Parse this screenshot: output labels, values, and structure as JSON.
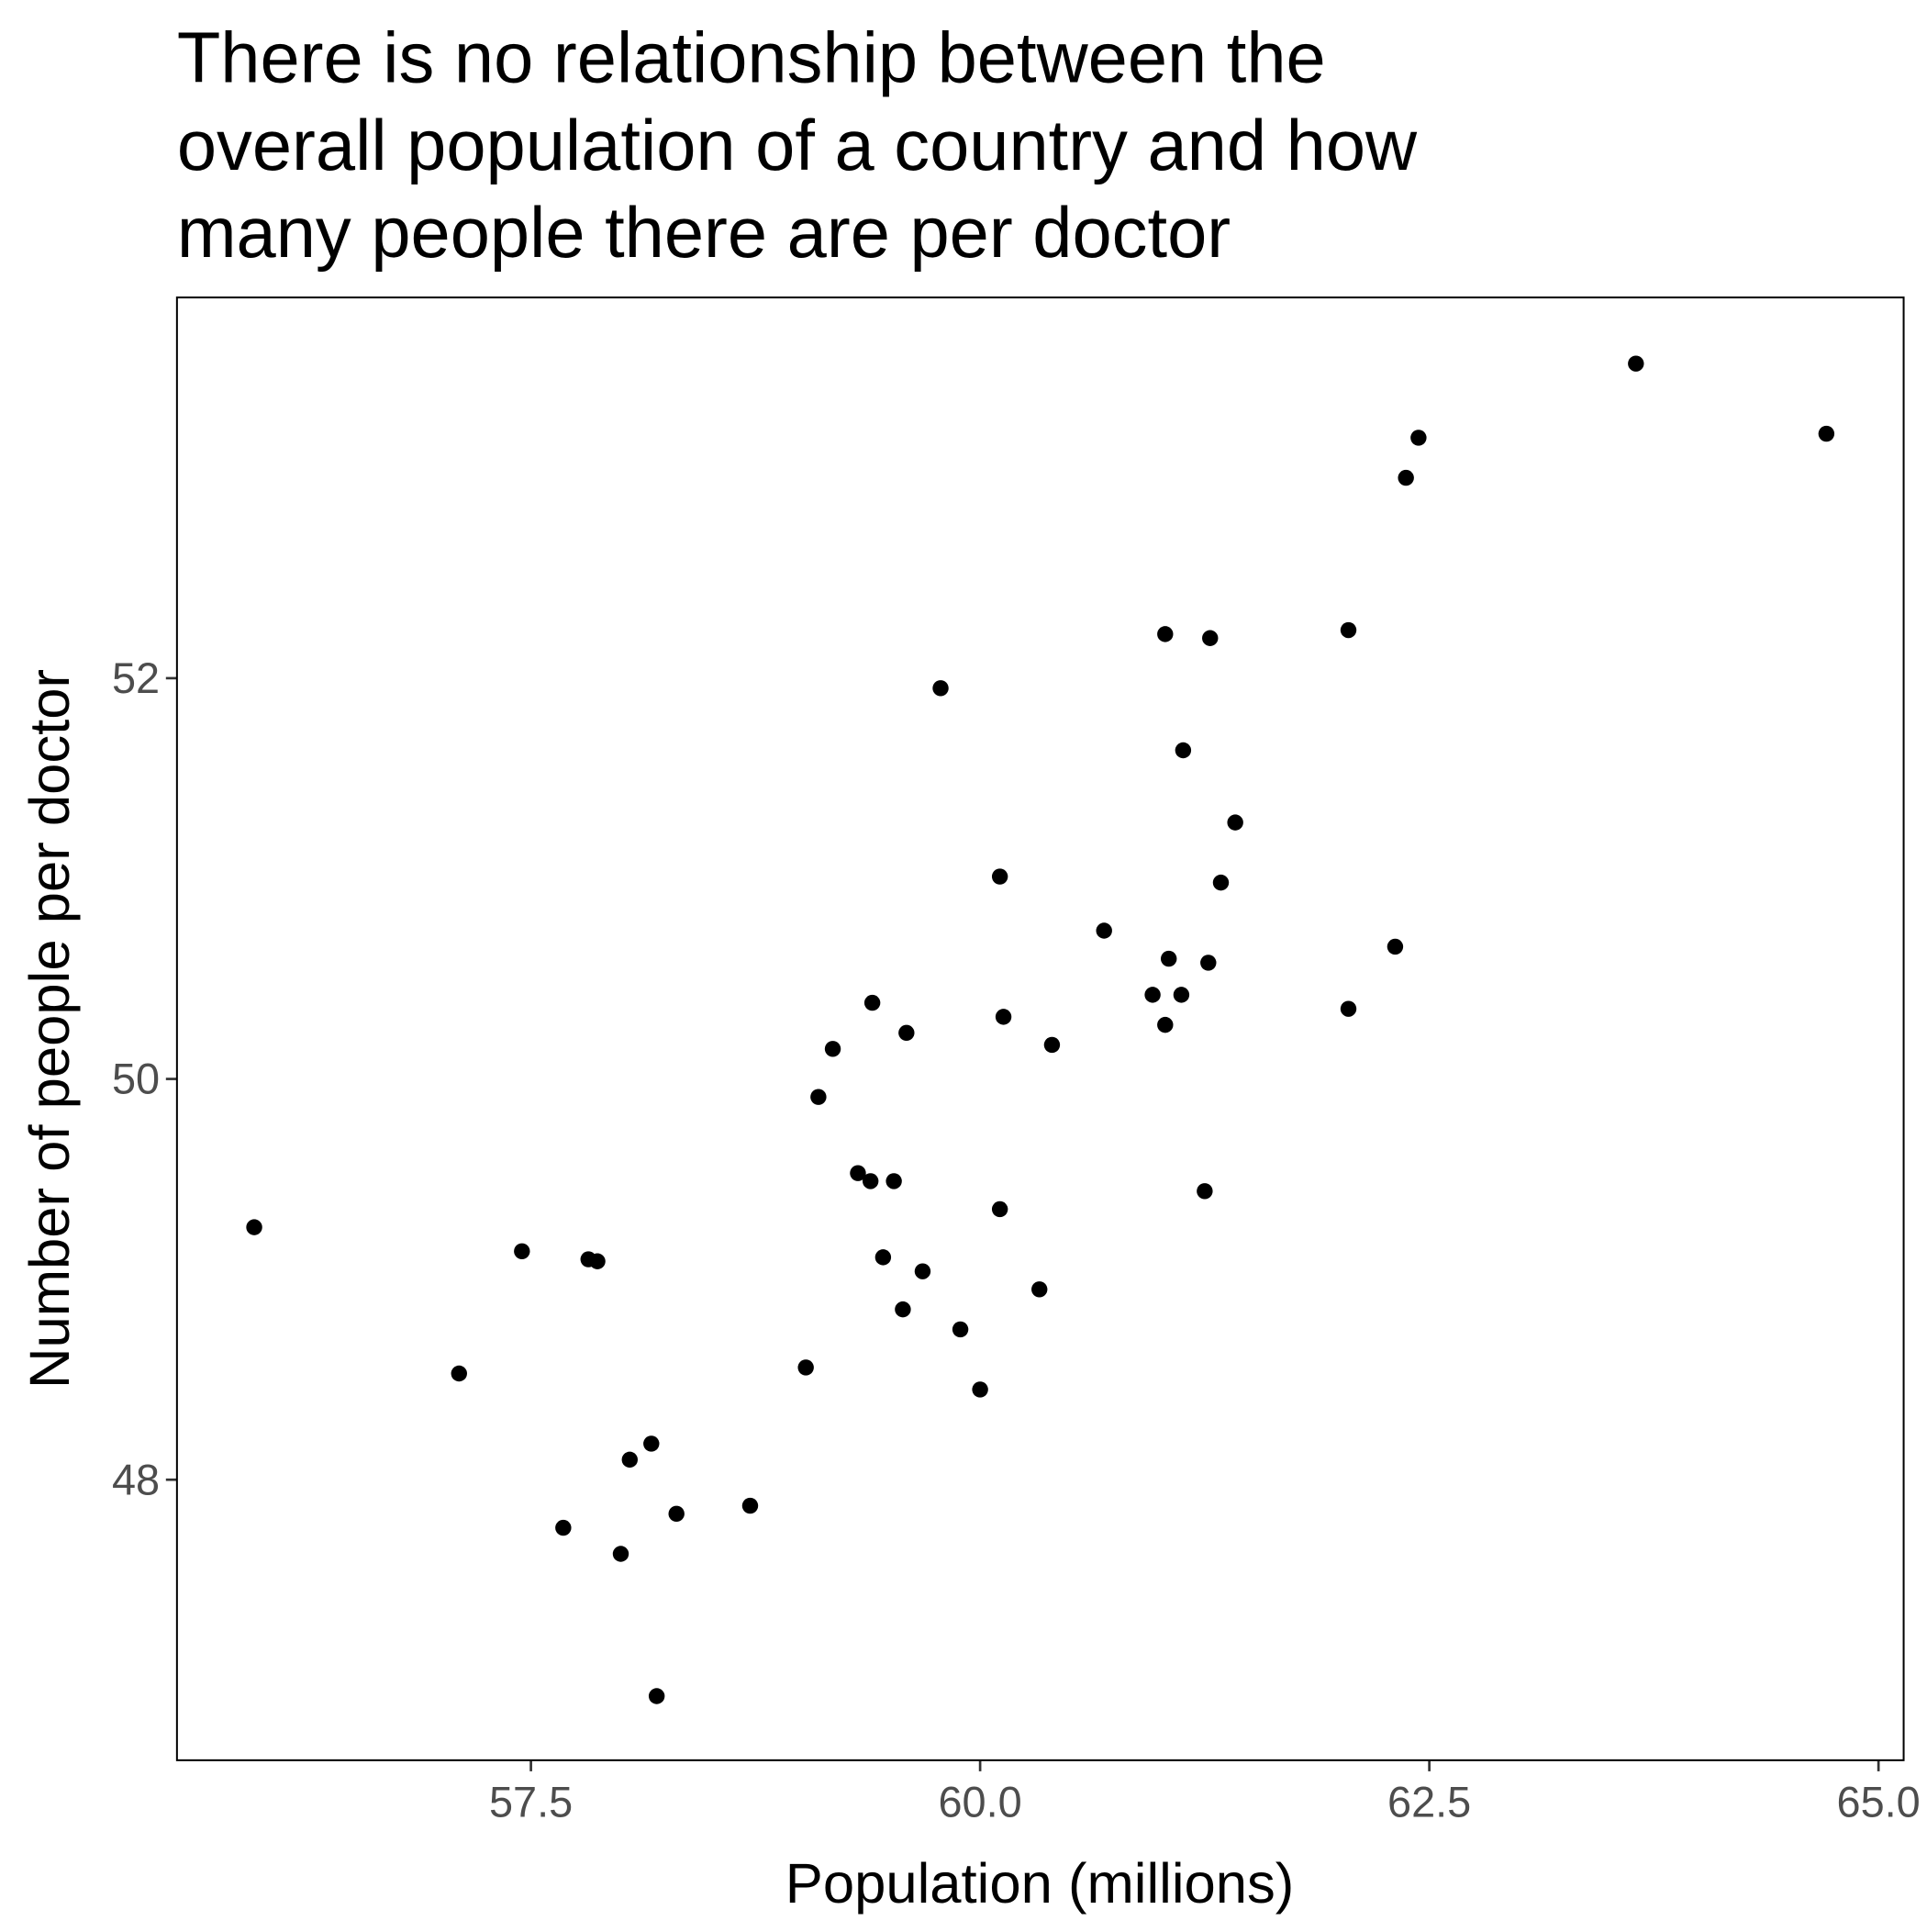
{
  "chart_data": {
    "type": "scatter",
    "title": [
      "There is no relationship between the",
      "overall population of a country and how",
      "many people there are per doctor"
    ],
    "x_label": "Population (millions)",
    "y_label": "Number of people per doctor",
    "color": "#000000",
    "xlim": [
      55.53,
      65.14
    ],
    "ylim": [
      46.6,
      53.9
    ],
    "xticks": [
      57.5,
      {
        "value": 60,
        "label": "60.0"
      },
      62.5,
      {
        "value": 65,
        "label": "65.0"
      }
    ],
    "yticks": [
      48,
      50,
      52
    ],
    "x": [
      55.96,
      57.45,
      57.1,
      57.82,
      57.87,
      57.68,
      58.05,
      58.17,
      58.0,
      58.31,
      58.2,
      58.72,
      59.03,
      59.1,
      59.18,
      59.4,
      59.59,
      59.32,
      59.39,
      59.52,
      59.46,
      59.68,
      59.57,
      59.78,
      59.89,
      60.0,
      60.11,
      60.13,
      60.11,
      60.33,
      60.4,
      60.69,
      60.96,
      61.03,
      61.03,
      61.05,
      61.12,
      61.13,
      61.25,
      61.27,
      61.28,
      61.34,
      61.42,
      62.05,
      62.05,
      62.31,
      62.37,
      62.44,
      63.65,
      64.71
    ],
    "values": [
      49.26,
      49.14,
      48.53,
      49.1,
      49.09,
      47.76,
      48.1,
      48.18,
      47.63,
      47.83,
      46.92,
      47.87,
      48.56,
      49.91,
      50.15,
      50.38,
      50.23,
      49.53,
      49.49,
      49.49,
      49.11,
      49.04,
      48.85,
      51.95,
      48.75,
      48.45,
      51.01,
      50.31,
      49.35,
      48.95,
      50.17,
      50.74,
      50.42,
      52.22,
      50.27,
      50.6,
      50.42,
      51.64,
      49.44,
      50.58,
      52.2,
      50.98,
      51.28,
      52.24,
      50.35,
      50.66,
      53.0,
      53.2,
      53.57,
      53.22
    ]
  }
}
